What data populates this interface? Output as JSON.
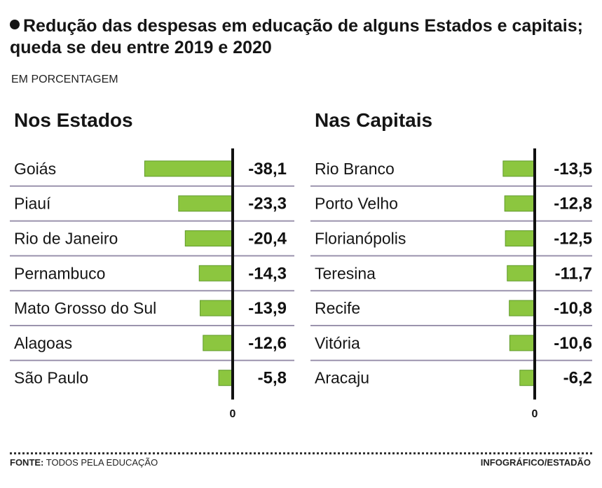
{
  "header": {
    "title": "Redução das despesas em educação de alguns Estados e capitais; queda se deu entre 2019 e 2020",
    "subtitle": "EM PORCENTAGEM"
  },
  "colors": {
    "bar": "#8cc63f",
    "bar_edge": "#5f9a2a",
    "divider": "#9b93ad",
    "axis": "#111111"
  },
  "chart_data": [
    {
      "type": "bar",
      "orientation": "horizontal",
      "title": "Nos Estados",
      "categories": [
        "Goiás",
        "Piauí",
        "Rio de Janeiro",
        "Pernambuco",
        "Mato Grosso do Sul",
        "Alagoas",
        "São Paulo"
      ],
      "values": [
        -38.1,
        -23.3,
        -20.4,
        -14.3,
        -13.9,
        -12.6,
        -5.8
      ],
      "value_labels": [
        "-38,1",
        "-23,3",
        "-20,4",
        "-14,3",
        "-13,9",
        "-12,6",
        "-5,8"
      ],
      "axis_label": "0",
      "xlim": [
        -40,
        0
      ]
    },
    {
      "type": "bar",
      "orientation": "horizontal",
      "title": "Nas Capitais",
      "categories": [
        "Rio Branco",
        "Porto Velho",
        "Florianópolis",
        "Teresina",
        "Recife",
        "Vitória",
        "Aracaju"
      ],
      "values": [
        -13.5,
        -12.8,
        -12.5,
        -11.7,
        -10.8,
        -10.6,
        -6.2
      ],
      "value_labels": [
        "-13,5",
        "-12,8",
        "-12,5",
        "-11,7",
        "-10,8",
        "-10,6",
        "-6,2"
      ],
      "axis_label": "0",
      "xlim": [
        -40,
        0
      ]
    }
  ],
  "footer": {
    "source_label": "FONTE:",
    "source_text": "TODOS PELA EDUCAÇÃO",
    "credit": "INFOGRÁFICO/ESTADÃO"
  }
}
